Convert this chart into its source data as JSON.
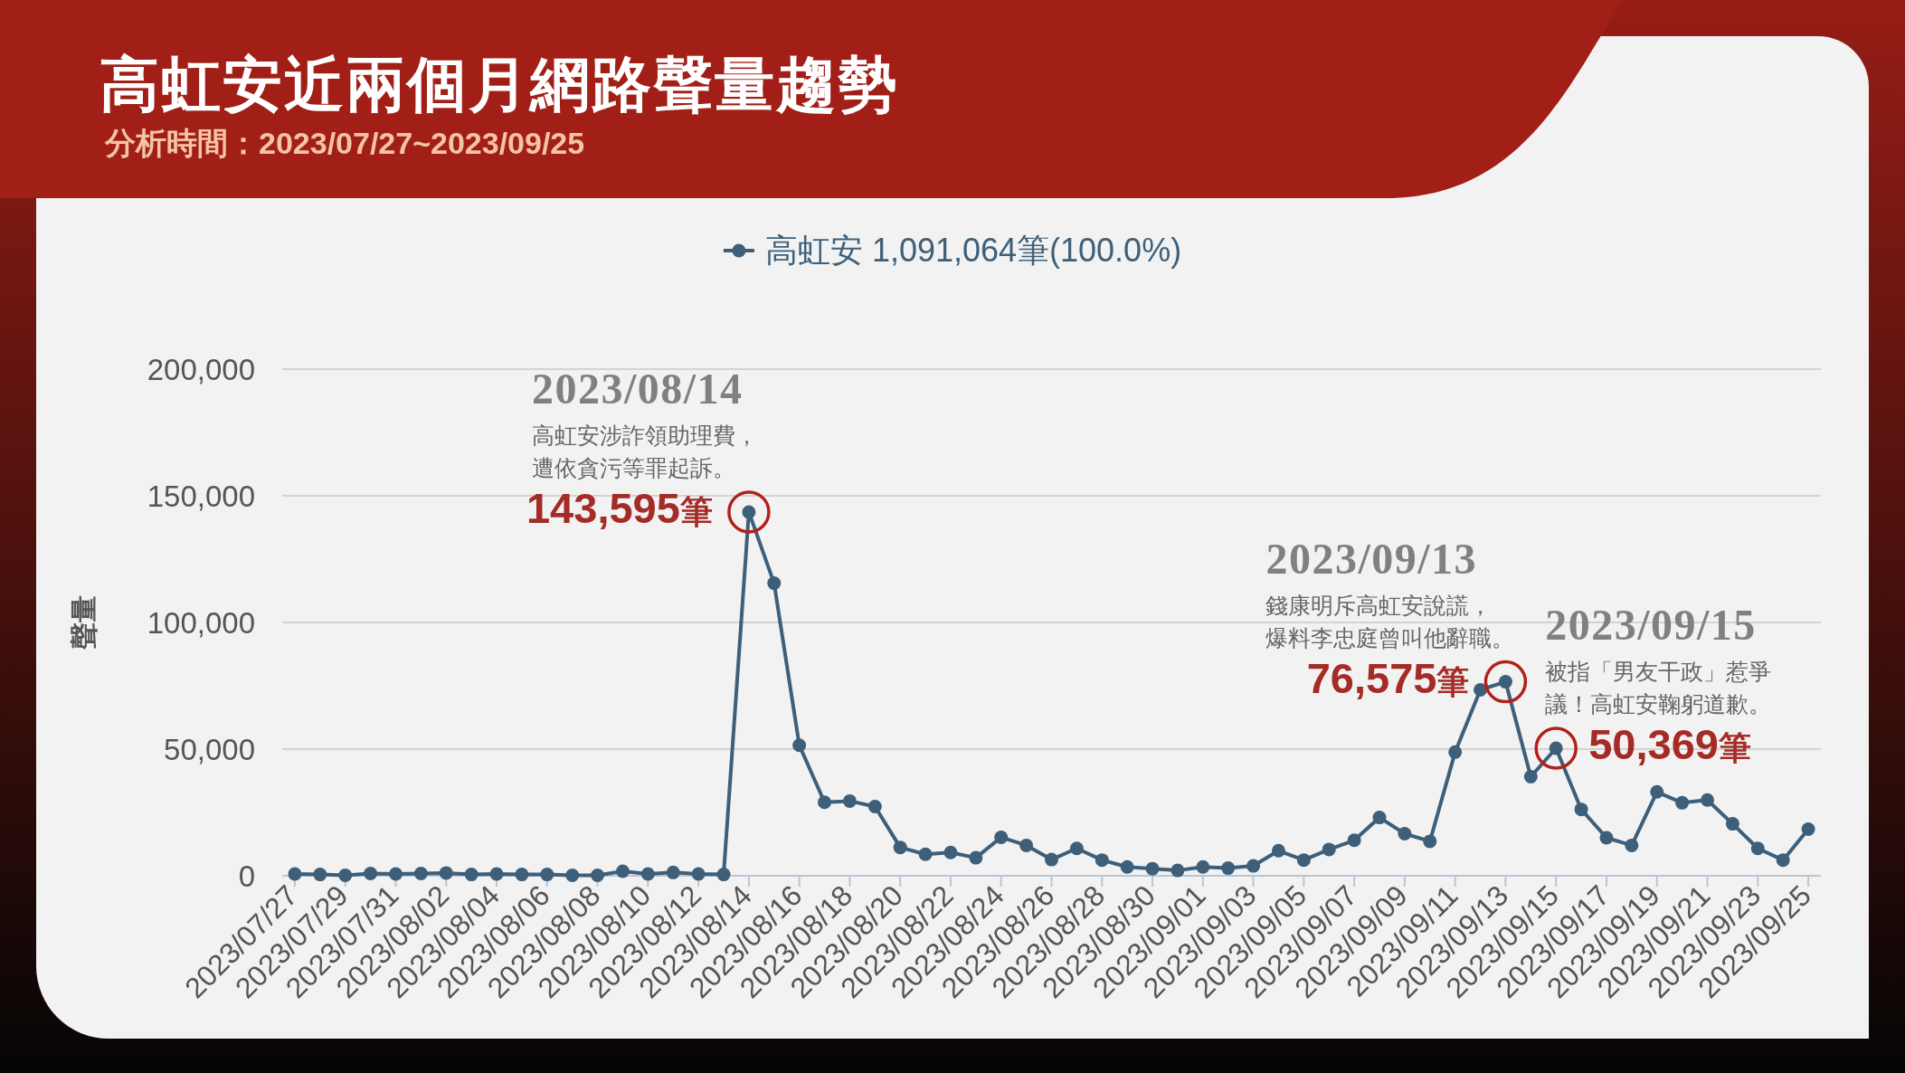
{
  "chart_data": {
    "type": "line",
    "title": "高虹安近兩個月網路聲量趨勢",
    "subtitle": "分析時間：2023/07/27~2023/09/25",
    "ylabel": "聲量",
    "categories": [
      "2023/07/27",
      null,
      "2023/07/29",
      null,
      "2023/07/31",
      null,
      "2023/08/02",
      null,
      "2023/08/04",
      null,
      "2023/08/06",
      null,
      "2023/08/08",
      null,
      "2023/08/10",
      null,
      "2023/08/12",
      null,
      "2023/08/14",
      null,
      "2023/08/16",
      null,
      "2023/08/18",
      null,
      "2023/08/20",
      null,
      "2023/08/22",
      null,
      "2023/08/24",
      null,
      "2023/08/26",
      null,
      "2023/08/28",
      null,
      "2023/08/30",
      null,
      "2023/09/01",
      null,
      "2023/09/03",
      null,
      "2023/09/05",
      null,
      "2023/09/07",
      null,
      "2023/09/09",
      null,
      "2023/09/11",
      null,
      "2023/09/13",
      null,
      "2023/09/15",
      null,
      "2023/09/17",
      null,
      "2023/09/19",
      null,
      "2023/09/21",
      null,
      "2023/09/23",
      null,
      "2023/09/25"
    ],
    "series": [
      {
        "name": "高虹安 1,091,064筆(100.0%)",
        "color": "#3d5f7a",
        "values": [
          700,
          500,
          200,
          900,
          700,
          900,
          1100,
          500,
          700,
          500,
          500,
          200,
          200,
          1800,
          700,
          1300,
          700,
          500,
          143595,
          115500,
          51500,
          29000,
          29500,
          27300,
          11200,
          8500,
          9200,
          7100,
          15200,
          12000,
          6400,
          10800,
          6200,
          3500,
          2800,
          2100,
          3500,
          3000,
          3900,
          9900,
          6200,
          10400,
          14000,
          23000,
          16600,
          13600,
          48800,
          73400,
          76575,
          39100,
          50369,
          26200,
          15000,
          12000,
          33100,
          28800,
          29900,
          20500,
          10800,
          6200,
          18400
        ],
        "value_labels": [
          null,
          null,
          null,
          null,
          null,
          null,
          null,
          null,
          null,
          null,
          null,
          null,
          null,
          null,
          null,
          null,
          null,
          null,
          "143,595筆",
          null,
          null,
          null,
          null,
          null,
          null,
          null,
          null,
          null,
          null,
          null,
          null,
          null,
          null,
          null,
          null,
          null,
          null,
          null,
          null,
          null,
          null,
          null,
          null,
          null,
          null,
          null,
          null,
          null,
          "76,575筆",
          null,
          "50,369筆",
          null,
          null,
          null,
          null,
          null,
          null,
          null,
          null,
          null,
          null
        ]
      }
    ],
    "ylim": [
      0,
      200000
    ],
    "yticks": [
      0,
      {
        "value": 50000,
        "label": "50,000"
      },
      {
        "value": 100000,
        "label": "100,000"
      },
      {
        "value": 150000,
        "label": "150,000"
      },
      {
        "value": 200000,
        "label": "200,000"
      }
    ],
    "grid": "y",
    "legend": "top",
    "marker": "circle",
    "annotations": [
      {
        "text": "2023/08/14\n高虹安涉詐領助理費，遭依貪污等罪起訴。",
        "x": "2023/08/14",
        "y": 143595
      },
      {
        "text": "2023/09/13\n錢康明斥高虹安說謊，爆料李忠庭曾叫他辭職。",
        "x": "2023/09/13",
        "y": 76575
      },
      {
        "text": "2023/09/15\n被指「男友干政」惹爭議！高虹安鞠躬道歉。",
        "x": "2023/09/15",
        "y": 50369
      }
    ]
  }
}
